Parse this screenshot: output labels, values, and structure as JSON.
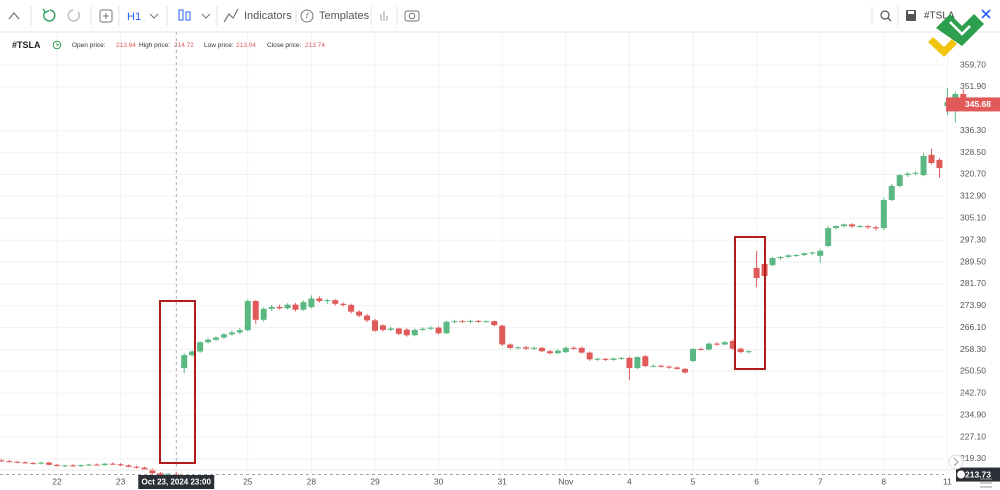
{
  "toolbar": {
    "interval": "H1",
    "indicators": "Indicators",
    "templates": "Templates",
    "symbol": "#TSLA"
  },
  "chart_data": {
    "type": "candlestick",
    "symbol": "#TSLA",
    "legend_labels": {
      "open": "Open price:",
      "high": "High price:",
      "low": "Low price:",
      "close": "Close price:"
    },
    "up_color": "#5cb883",
    "down_color": "#e05a5a",
    "grid": true,
    "ylim": [
      212.5,
      371.5
    ],
    "yticks": [
      {
        "value": 359.7,
        "label": "359.70"
      },
      {
        "value": 351.9,
        "label": "351.90"
      },
      {
        "value": 336.3,
        "label": "336.30"
      },
      {
        "value": 328.5,
        "label": "328.50"
      },
      {
        "value": 320.7,
        "label": "320.70"
      },
      {
        "value": 312.9,
        "label": "312.90"
      },
      {
        "value": 305.1,
        "label": "305.10"
      },
      {
        "value": 297.3,
        "label": "297.30"
      },
      {
        "value": 289.5,
        "label": "289.50"
      },
      {
        "value": 281.7,
        "label": "281.70"
      },
      {
        "value": 273.9,
        "label": "273.90"
      },
      {
        "value": 266.1,
        "label": "266.10"
      },
      {
        "value": 258.3,
        "label": "258.30"
      },
      {
        "value": 250.5,
        "label": "250.50"
      },
      {
        "value": 242.7,
        "label": "242.70"
      },
      {
        "value": 234.9,
        "label": "234.90"
      },
      {
        "value": 227.1,
        "label": "227.10"
      },
      {
        "value": 219.3,
        "label": "219.30"
      }
    ],
    "crosshair_label": "Oct 23, 2024 23:00",
    "crosshair_price": 213.73,
    "categories": [
      null,
      null,
      null,
      null,
      null,
      null,
      null,
      "22",
      null,
      null,
      null,
      null,
      null,
      null,
      null,
      "23",
      null,
      null,
      null,
      null,
      null,
      null,
      null,
      null,
      null,
      null,
      null,
      null,
      null,
      null,
      null,
      "25",
      null,
      null,
      null,
      null,
      null,
      null,
      null,
      "28",
      null,
      null,
      null,
      null,
      null,
      null,
      null,
      "29",
      null,
      null,
      null,
      null,
      null,
      null,
      null,
      "30",
      null,
      null,
      null,
      null,
      null,
      null,
      null,
      "31",
      null,
      null,
      null,
      null,
      null,
      null,
      null,
      "Nov",
      null,
      null,
      null,
      null,
      null,
      null,
      null,
      "4",
      null,
      null,
      null,
      null,
      null,
      null,
      null,
      "5",
      null,
      null,
      null,
      null,
      null,
      null,
      null,
      "6",
      null,
      null,
      null,
      null,
      null,
      null,
      null,
      "7",
      null,
      null,
      null,
      null,
      null,
      null,
      null,
      "8",
      null,
      null,
      null,
      null,
      null,
      null,
      null,
      "11",
      null,
      null
    ],
    "open": [
      218.8,
      218.5,
      218.3,
      218.1,
      217.8,
      217.6,
      218.0,
      217.2,
      216.8,
      217.0,
      216.7,
      217.1,
      217.3,
      217.1,
      217.6,
      217.4,
      217.0,
      216.5,
      216.2,
      215.6,
      214.2,
      213.5,
      213.84,
      251.7,
      256.3,
      257.6,
      260.9,
      261.8,
      262.6,
      263.7,
      264.4,
      265.2,
      275.6,
      268.9,
      272.8,
      273.5,
      273.0,
      274.3,
      272.5,
      273.4,
      276.5,
      275.6,
      275.9,
      274.6,
      274.2,
      271.8,
      270.4,
      268.7,
      266.9,
      265.3,
      265.8,
      265.4,
      263.4,
      265.3,
      265.7,
      266.1,
      264.1,
      268.2,
      268.4,
      268.2,
      268.5,
      268.3,
      268.4,
      266.8,
      260.1,
      258.9,
      259.1,
      258.6,
      258.9,
      257.7,
      257.0,
      257.4,
      258.9,
      258.9,
      257.2,
      254.8,
      255.0,
      254.6,
      255.1,
      255.3,
      251.7,
      255.9,
      252.4,
      252.5,
      252.2,
      251.9,
      251.4,
      254.2,
      258.5,
      258.3,
      260.4,
      260.1,
      261.3,
      258.6,
      257.4,
      287.4,
      288.8,
      288.4,
      290.9,
      291.3,
      291.9,
      292.0,
      292.6,
      291.7,
      295.2,
      301.6,
      302.3,
      302.9,
      302.2,
      302.3,
      301.9,
      301.6,
      311.6,
      316.6,
      320.5,
      321.0,
      320.5,
      327.7,
      325.9,
      345.1,
      345.1,
      349.4
    ],
    "high": [
      219.3,
      218.9,
      218.6,
      218.4,
      218.2,
      218.3,
      218.3,
      217.5,
      217.2,
      217.4,
      217.3,
      217.6,
      217.7,
      217.8,
      218.0,
      217.8,
      217.3,
      216.9,
      216.5,
      215.9,
      214.6,
      214.3,
      214.72,
      257.0,
      258.0,
      261.3,
      262.5,
      263.0,
      264.2,
      265.0,
      266.0,
      276.2,
      275.9,
      273.4,
      274.2,
      274.3,
      274.8,
      274.9,
      275.8,
      277.6,
      277.3,
      276.4,
      276.3,
      275.1,
      274.6,
      272.3,
      271.0,
      269.2,
      267.3,
      266.3,
      266.1,
      265.9,
      265.8,
      266.2,
      266.6,
      266.5,
      268.6,
      268.9,
      268.8,
      268.9,
      268.8,
      268.7,
      268.6,
      267.2,
      260.5,
      259.5,
      259.6,
      259.3,
      259.2,
      258.1,
      258.3,
      259.3,
      259.4,
      259.3,
      257.6,
      255.4,
      255.3,
      255.4,
      255.6,
      255.8,
      255.9,
      256.3,
      253.0,
      252.9,
      252.6,
      252.2,
      251.8,
      258.9,
      259.0,
      260.9,
      260.9,
      261.3,
      261.9,
      259.0,
      258.1,
      293.4,
      289.6,
      291.3,
      291.6,
      292.2,
      292.4,
      292.9,
      293.2,
      294.1,
      302.2,
      302.6,
      303.2,
      303.3,
      302.8,
      302.7,
      302.3,
      312.4,
      317.3,
      320.8,
      321.6,
      321.9,
      328.4,
      329.9,
      326.5,
      351.5,
      350.3,
      351.0
    ],
    "low": [
      218.2,
      218.0,
      217.8,
      217.6,
      217.4,
      217.3,
      217.0,
      216.6,
      216.4,
      216.5,
      216.4,
      216.8,
      216.9,
      216.9,
      217.2,
      216.8,
      216.3,
      215.9,
      215.3,
      213.8,
      213.2,
      213.1,
      213.04,
      249.9,
      255.8,
      257.1,
      260.4,
      261.2,
      262.0,
      263.2,
      263.8,
      264.7,
      267.5,
      268.2,
      272.0,
      272.6,
      272.6,
      271.9,
      272.1,
      273.0,
      275.0,
      274.6,
      274.0,
      273.6,
      271.2,
      269.8,
      268.1,
      264.6,
      264.7,
      264.9,
      263.4,
      262.9,
      263.0,
      264.9,
      265.2,
      263.6,
      263.8,
      267.7,
      267.9,
      267.6,
      267.8,
      267.9,
      266.6,
      259.6,
      258.4,
      258.3,
      258.2,
      258.0,
      257.3,
      256.5,
      256.7,
      257.0,
      258.2,
      256.9,
      254.3,
      254.3,
      254.2,
      254.3,
      254.6,
      247.4,
      251.2,
      252.0,
      251.9,
      251.9,
      251.5,
      251.1,
      249.7,
      253.7,
      257.9,
      257.9,
      259.6,
      259.8,
      258.2,
      257.0,
      256.9,
      280.6,
      283.9,
      287.9,
      290.3,
      290.8,
      291.3,
      291.6,
      291.9,
      289.2,
      294.8,
      301.1,
      301.8,
      301.7,
      301.6,
      301.3,
      300.8,
      300.9,
      311.2,
      316.1,
      319.8,
      320.4,
      320.1,
      324.3,
      319.5,
      341.9,
      339.3,
      345.3
    ],
    "close": [
      218.5,
      218.3,
      218.1,
      217.8,
      217.6,
      218.0,
      217.2,
      216.8,
      217.0,
      216.7,
      217.1,
      217.3,
      217.1,
      217.6,
      217.4,
      217.0,
      216.5,
      216.2,
      215.6,
      214.2,
      213.5,
      214.0,
      213.74,
      256.3,
      257.6,
      260.9,
      261.8,
      262.6,
      263.7,
      264.4,
      265.2,
      275.6,
      268.9,
      272.8,
      273.5,
      273.0,
      274.3,
      272.5,
      275.2,
      276.5,
      275.6,
      275.9,
      274.6,
      274.2,
      271.8,
      270.4,
      268.7,
      265.0,
      265.3,
      265.8,
      263.9,
      263.4,
      265.3,
      265.7,
      266.1,
      264.1,
      268.2,
      268.4,
      268.2,
      268.5,
      268.3,
      268.4,
      267.0,
      260.1,
      258.9,
      259.1,
      258.6,
      258.9,
      257.7,
      257.0,
      257.9,
      258.9,
      258.6,
      257.2,
      254.8,
      255.0,
      254.6,
      255.1,
      255.3,
      251.7,
      255.6,
      252.4,
      252.5,
      252.2,
      251.9,
      251.4,
      250.1,
      258.5,
      258.3,
      260.4,
      260.1,
      260.9,
      258.6,
      257.4,
      257.7,
      283.8,
      284.5,
      290.9,
      291.3,
      291.9,
      292.0,
      292.6,
      292.9,
      293.5,
      301.6,
      302.3,
      302.9,
      302.2,
      302.3,
      301.9,
      301.5,
      311.6,
      316.6,
      320.5,
      321.0,
      321.3,
      327.3,
      324.8,
      323.0,
      346.5,
      349.4,
      345.68
    ]
  }
}
